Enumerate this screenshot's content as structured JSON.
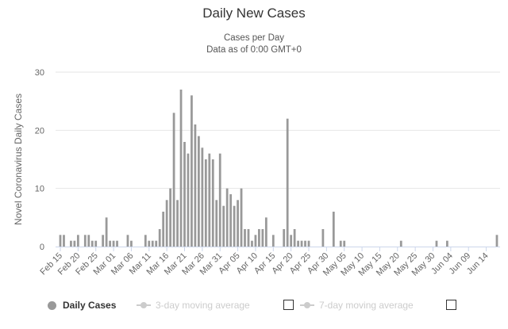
{
  "chart_data": {
    "type": "bar",
    "title": "Daily New Cases",
    "subtitle_lines": [
      "Cases per Day",
      "Data as of 0:00 GMT+0"
    ],
    "ylabel": "Novel Coronavirus Daily Cases",
    "xlabel": "",
    "ylim": [
      0,
      30
    ],
    "yticks": [
      0,
      10,
      20,
      30
    ],
    "grid": true,
    "legend_position": "bottom",
    "bar_color": "#999999",
    "x_tick_labels": [
      "Feb 15",
      "Feb 20",
      "Feb 25",
      "Mar 01",
      "Mar 06",
      "Mar 11",
      "Mar 16",
      "Mar 21",
      "Mar 26",
      "Mar 31",
      "Apr 05",
      "Apr 10",
      "Apr 15",
      "Apr 20",
      "Apr 25",
      "Apr 30",
      "May 05",
      "May 10",
      "May 15",
      "May 20",
      "May 25",
      "May 30",
      "Jun 04",
      "Jun 09",
      "Jun 14"
    ],
    "x_tick_dates": [
      "2020-02-15",
      "2020-02-20",
      "2020-02-25",
      "2020-03-01",
      "2020-03-06",
      "2020-03-11",
      "2020-03-16",
      "2020-03-21",
      "2020-03-26",
      "2020-03-31",
      "2020-04-05",
      "2020-04-10",
      "2020-04-15",
      "2020-04-20",
      "2020-04-25",
      "2020-04-30",
      "2020-05-05",
      "2020-05-10",
      "2020-05-15",
      "2020-05-20",
      "2020-05-25",
      "2020-05-30",
      "2020-06-04",
      "2020-06-09",
      "2020-06-14"
    ],
    "series": [
      {
        "name": "Daily Cases",
        "points": [
          {
            "x": "2020-02-15",
            "y": 2
          },
          {
            "x": "2020-02-16",
            "y": 2
          },
          {
            "x": "2020-02-18",
            "y": 1
          },
          {
            "x": "2020-02-19",
            "y": 1
          },
          {
            "x": "2020-02-20",
            "y": 2
          },
          {
            "x": "2020-02-22",
            "y": 2
          },
          {
            "x": "2020-02-23",
            "y": 2
          },
          {
            "x": "2020-02-24",
            "y": 1
          },
          {
            "x": "2020-02-25",
            "y": 1
          },
          {
            "x": "2020-02-27",
            "y": 2
          },
          {
            "x": "2020-02-28",
            "y": 5
          },
          {
            "x": "2020-02-29",
            "y": 1
          },
          {
            "x": "2020-03-01",
            "y": 1
          },
          {
            "x": "2020-03-02",
            "y": 1
          },
          {
            "x": "2020-03-05",
            "y": 2
          },
          {
            "x": "2020-03-06",
            "y": 1
          },
          {
            "x": "2020-03-10",
            "y": 2
          },
          {
            "x": "2020-03-11",
            "y": 1
          },
          {
            "x": "2020-03-12",
            "y": 1
          },
          {
            "x": "2020-03-13",
            "y": 1
          },
          {
            "x": "2020-03-14",
            "y": 3
          },
          {
            "x": "2020-03-15",
            "y": 6
          },
          {
            "x": "2020-03-16",
            "y": 8
          },
          {
            "x": "2020-03-17",
            "y": 10
          },
          {
            "x": "2020-03-18",
            "y": 23
          },
          {
            "x": "2020-03-19",
            "y": 8
          },
          {
            "x": "2020-03-20",
            "y": 27
          },
          {
            "x": "2020-03-21",
            "y": 18
          },
          {
            "x": "2020-03-22",
            "y": 16
          },
          {
            "x": "2020-03-23",
            "y": 26
          },
          {
            "x": "2020-03-24",
            "y": 21
          },
          {
            "x": "2020-03-25",
            "y": 19
          },
          {
            "x": "2020-03-26",
            "y": 17
          },
          {
            "x": "2020-03-27",
            "y": 15
          },
          {
            "x": "2020-03-28",
            "y": 16
          },
          {
            "x": "2020-03-29",
            "y": 15
          },
          {
            "x": "2020-03-30",
            "y": 8
          },
          {
            "x": "2020-03-31",
            "y": 16
          },
          {
            "x": "2020-04-01",
            "y": 7
          },
          {
            "x": "2020-04-02",
            "y": 10
          },
          {
            "x": "2020-04-03",
            "y": 9
          },
          {
            "x": "2020-04-04",
            "y": 7
          },
          {
            "x": "2020-04-05",
            "y": 8
          },
          {
            "x": "2020-04-06",
            "y": 10
          },
          {
            "x": "2020-04-07",
            "y": 3
          },
          {
            "x": "2020-04-08",
            "y": 3
          },
          {
            "x": "2020-04-09",
            "y": 1
          },
          {
            "x": "2020-04-10",
            "y": 2
          },
          {
            "x": "2020-04-11",
            "y": 3
          },
          {
            "x": "2020-04-12",
            "y": 3
          },
          {
            "x": "2020-04-13",
            "y": 5
          },
          {
            "x": "2020-04-15",
            "y": 2
          },
          {
            "x": "2020-04-18",
            "y": 3
          },
          {
            "x": "2020-04-19",
            "y": 22
          },
          {
            "x": "2020-04-20",
            "y": 2
          },
          {
            "x": "2020-04-21",
            "y": 3
          },
          {
            "x": "2020-04-22",
            "y": 1
          },
          {
            "x": "2020-04-23",
            "y": 1
          },
          {
            "x": "2020-04-24",
            "y": 1
          },
          {
            "x": "2020-04-25",
            "y": 1
          },
          {
            "x": "2020-04-29",
            "y": 3
          },
          {
            "x": "2020-05-02",
            "y": 6
          },
          {
            "x": "2020-05-04",
            "y": 1
          },
          {
            "x": "2020-05-05",
            "y": 1
          },
          {
            "x": "2020-05-21",
            "y": 1
          },
          {
            "x": "2020-05-31",
            "y": 1
          },
          {
            "x": "2020-06-03",
            "y": 1
          },
          {
            "x": "2020-06-17",
            "y": 2
          }
        ]
      }
    ]
  },
  "legend": {
    "items": [
      {
        "label": "Daily Cases",
        "state": "active"
      },
      {
        "label": "3-day moving average",
        "state": "inactive"
      },
      {
        "label": "7-day moving average",
        "state": "inactive"
      }
    ]
  }
}
